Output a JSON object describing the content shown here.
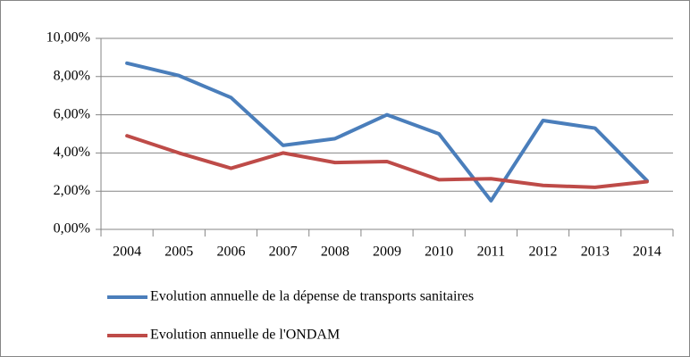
{
  "chart_data": {
    "type": "line",
    "categories": [
      "2004",
      "2005",
      "2006",
      "2007",
      "2008",
      "2009",
      "2010",
      "2011",
      "2012",
      "2013",
      "2014"
    ],
    "series": [
      {
        "name": "Evolution annuelle de la dépense de transports sanitaires",
        "color": "#4a7ebb",
        "values": [
          8.7,
          8.05,
          6.9,
          4.4,
          4.75,
          6.0,
          5.0,
          1.5,
          5.7,
          5.3,
          2.55
        ]
      },
      {
        "name": "Evolution annuelle de l'ONDAM",
        "color": "#be4b48",
        "values": [
          4.9,
          4.0,
          3.2,
          4.0,
          3.5,
          3.55,
          2.6,
          2.65,
          2.3,
          2.2,
          2.5
        ]
      }
    ],
    "ylim": [
      0,
      10
    ],
    "yticks": [
      {
        "value": 0,
        "label": "0,00%"
      },
      {
        "value": 2,
        "label": "2,00%"
      },
      {
        "value": 4,
        "label": "4,00%"
      },
      {
        "value": 6,
        "label": "6,00%"
      },
      {
        "value": 8,
        "label": "8,00%"
      },
      {
        "value": 10,
        "label": "10,00%"
      }
    ],
    "grid": true,
    "legend": "bottom"
  }
}
